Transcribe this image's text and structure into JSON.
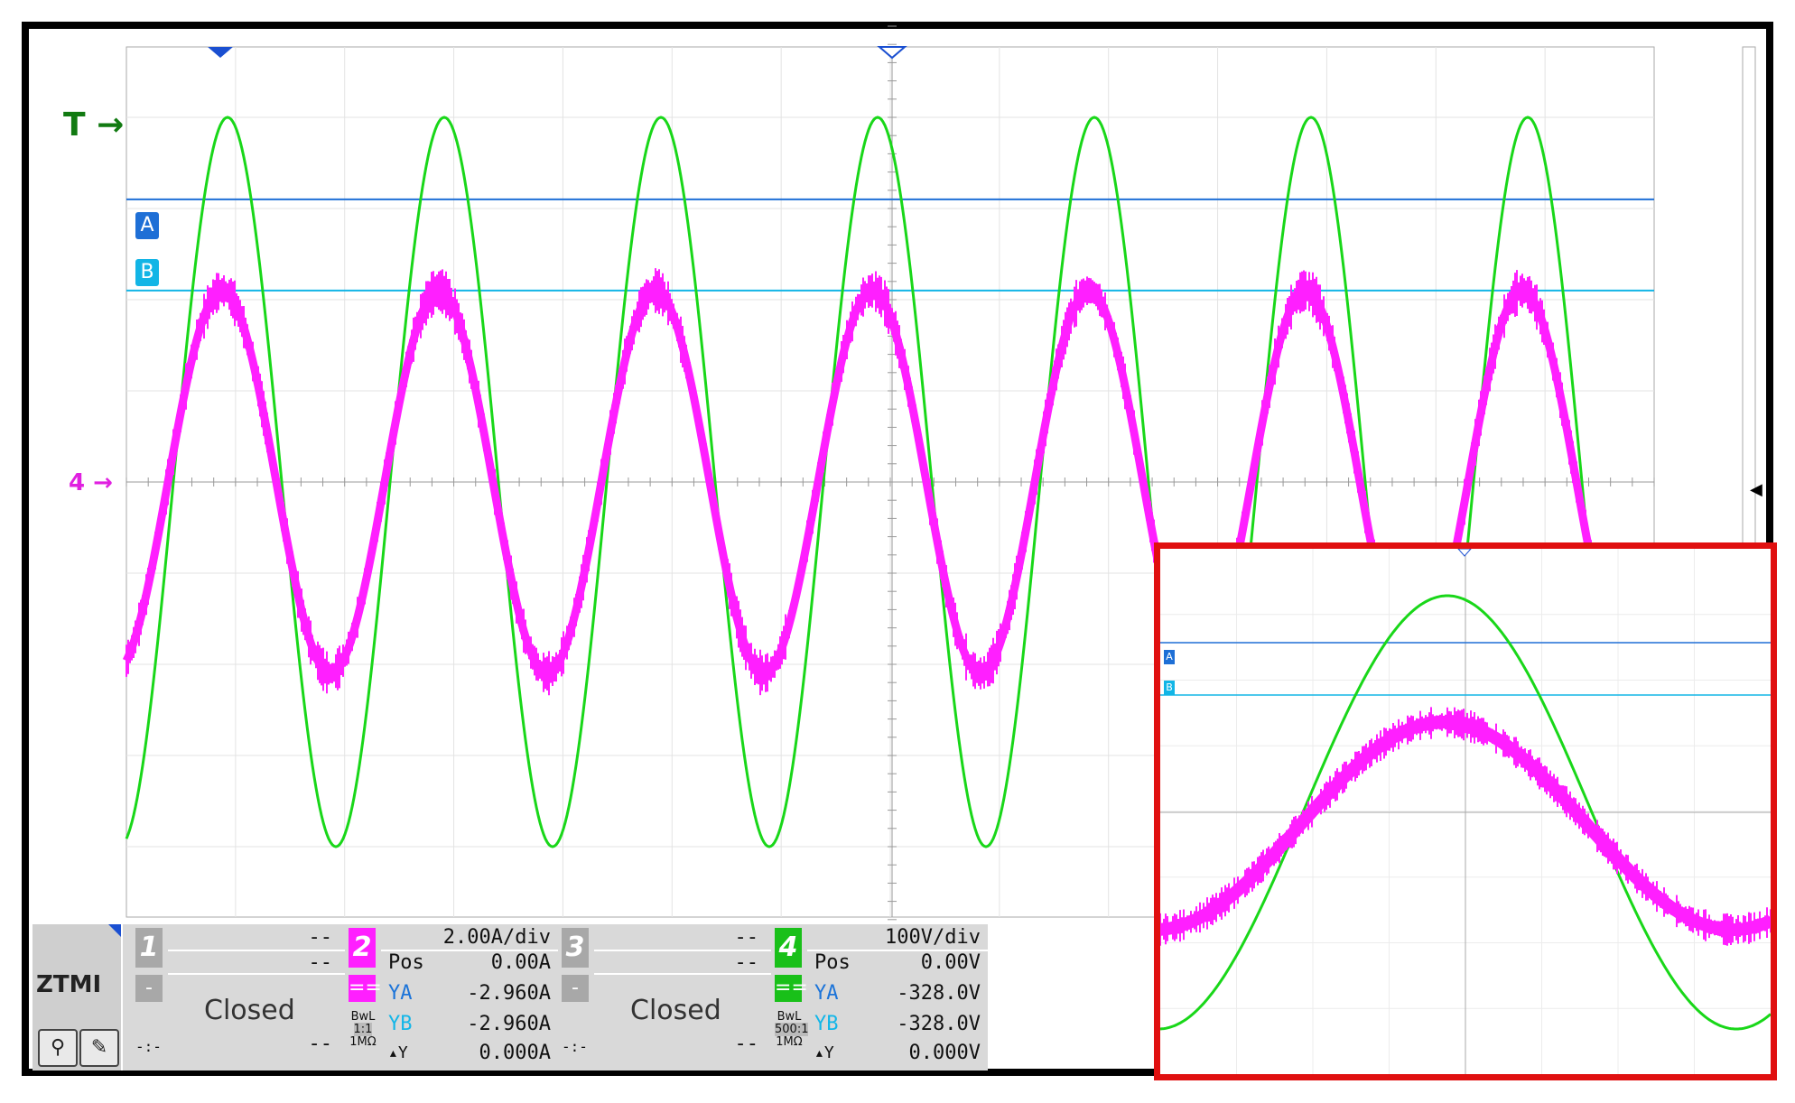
{
  "markers": {
    "trigger_label": "T",
    "channel_marker": "4",
    "cursor_a": "A",
    "cursor_b": "B"
  },
  "colors": {
    "ch2_current": "#ff1fff",
    "ch4_voltage": "#19d719",
    "cursor_a": "#1e6fd6",
    "cursor_b": "#12b5e6",
    "inset_border": "#e01010",
    "grid": "#cccccc"
  },
  "waveforms": {
    "cycles_main": 7,
    "ch4_peak_div": 4.0,
    "ch2_peak_div": 2.1,
    "ch2_offset_div": 0.3,
    "cursor_a_div": 3.1,
    "cursor_b_div": 2.1
  },
  "panel": {
    "logo": "ZTMI",
    "ch1": {
      "num": "1",
      "scale": "--",
      "pos": "--",
      "sub": "-",
      "status": "Closed",
      "extra": "--",
      "coupling": "-:-"
    },
    "ch2": {
      "num": "2",
      "scale": "2.00A/div",
      "pos_label": "Pos",
      "pos": "0.00A",
      "sub": "==",
      "ya_label": "YA",
      "ya": "-2.960A",
      "yb_label": "YB",
      "yb": "-2.960A",
      "dy_label": "▴Y",
      "dy": "0.000A",
      "bw": "BwL",
      "ratio": "1:1",
      "imp": "1MΩ"
    },
    "ch3": {
      "num": "3",
      "scale": "--",
      "pos": "--",
      "sub": "-",
      "status": "Closed",
      "extra": "--",
      "coupling": "-:-"
    },
    "ch4": {
      "num": "4",
      "scale": "100V/div",
      "pos_label": "Pos",
      "pos": "0.00V",
      "sub": "==",
      "ya_label": "YA",
      "ya": "-328.0V",
      "yb_label": "YB",
      "yb": "-328.0V",
      "dy_label": "▴Y",
      "dy": "0.000V",
      "bw": "BwL",
      "ratio": "500:1",
      "imp": "1MΩ"
    }
  },
  "inset": {
    "cursor_a": "A",
    "cursor_b": "B"
  }
}
